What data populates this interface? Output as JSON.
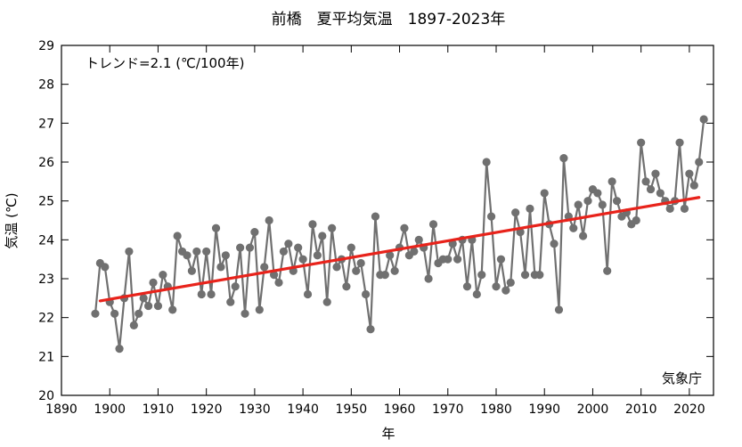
{
  "chart_data": {
    "type": "line",
    "title": "前橋　夏平均気温　1897-2023年",
    "xlabel": "年",
    "ylabel": "気温 (℃)",
    "xlim": [
      1890,
      2025
    ],
    "ylim": [
      20,
      29
    ],
    "xticks": [
      1890,
      1900,
      1910,
      1920,
      1930,
      1940,
      1950,
      1960,
      1970,
      1980,
      1990,
      2000,
      2010,
      2020
    ],
    "yticks": [
      20,
      21,
      22,
      23,
      24,
      25,
      26,
      27,
      28,
      29
    ],
    "grid": false,
    "annotation": "トレンド=2.1 (℃/100年)",
    "credit": "気象庁",
    "series": [
      {
        "color": "#707070",
        "x": [
          1897,
          1898,
          1899,
          1900,
          1901,
          1902,
          1903,
          1904,
          1905,
          1906,
          1907,
          1908,
          1909,
          1910,
          1911,
          1912,
          1913,
          1914,
          1915,
          1916,
          1917,
          1918,
          1919,
          1920,
          1921,
          1922,
          1923,
          1924,
          1925,
          1926,
          1927,
          1928,
          1929,
          1930,
          1931,
          1932,
          1933,
          1934,
          1935,
          1936,
          1937,
          1938,
          1939,
          1940,
          1941,
          1942,
          1943,
          1944,
          1945,
          1946,
          1947,
          1948,
          1949,
          1950,
          1951,
          1952,
          1953,
          1954,
          1955,
          1956,
          1957,
          1958,
          1959,
          1960,
          1961,
          1962,
          1963,
          1964,
          1965,
          1966,
          1967,
          1968,
          1969,
          1970,
          1971,
          1972,
          1973,
          1974,
          1975,
          1976,
          1977,
          1978,
          1979,
          1980,
          1981,
          1982,
          1983,
          1984,
          1985,
          1986,
          1987,
          1988,
          1989,
          1990,
          1991,
          1992,
          1993,
          1994,
          1995,
          1996,
          1997,
          1998,
          1999,
          2000,
          2001,
          2002,
          2003,
          2004,
          2005,
          2006,
          2007,
          2008,
          2009,
          2010,
          2011,
          2012,
          2013,
          2014,
          2015,
          2016,
          2017,
          2018,
          2019,
          2020,
          2021,
          2022,
          2023
        ],
        "y": [
          22.1,
          23.4,
          23.3,
          22.4,
          22.1,
          21.2,
          22.5,
          23.7,
          21.8,
          22.1,
          22.5,
          22.3,
          22.9,
          22.3,
          23.1,
          22.8,
          22.2,
          24.1,
          23.7,
          23.6,
          23.2,
          23.7,
          22.6,
          23.7,
          22.6,
          24.3,
          23.3,
          23.6,
          22.4,
          22.8,
          23.8,
          22.1,
          23.8,
          24.2,
          22.2,
          23.3,
          24.5,
          23.1,
          22.9,
          23.7,
          23.9,
          23.2,
          23.8,
          23.5,
          22.6,
          24.4,
          23.6,
          24.1,
          22.4,
          24.3,
          23.3,
          23.5,
          22.8,
          23.8,
          23.2,
          23.4,
          22.6,
          21.7,
          24.6,
          23.1,
          23.1,
          23.6,
          23.2,
          23.8,
          24.3,
          23.6,
          23.7,
          24.0,
          23.8,
          23.0,
          24.4,
          23.4,
          23.5,
          23.5,
          23.9,
          23.5,
          24.0,
          22.8,
          24.0,
          22.6,
          23.1,
          26.0,
          24.6,
          22.8,
          23.5,
          22.7,
          22.9,
          24.7,
          24.2,
          23.1,
          24.8,
          23.1,
          23.1,
          25.2,
          24.4,
          23.9,
          22.2,
          26.1,
          24.6,
          24.3,
          24.9,
          24.1,
          25.0,
          25.3,
          25.2,
          24.9,
          23.2,
          25.5,
          25.0,
          24.6,
          24.7,
          24.4,
          24.5,
          26.5,
          25.5,
          25.3,
          25.7,
          25.2,
          25.0,
          24.8,
          25.0,
          26.5,
          24.8,
          25.7,
          25.4,
          26.0,
          27.1
        ]
      },
      {
        "name": "トレンド",
        "color": "#e8231b",
        "x": [
          1898,
          2022
        ],
        "y": [
          22.43,
          25.09
        ]
      }
    ]
  }
}
